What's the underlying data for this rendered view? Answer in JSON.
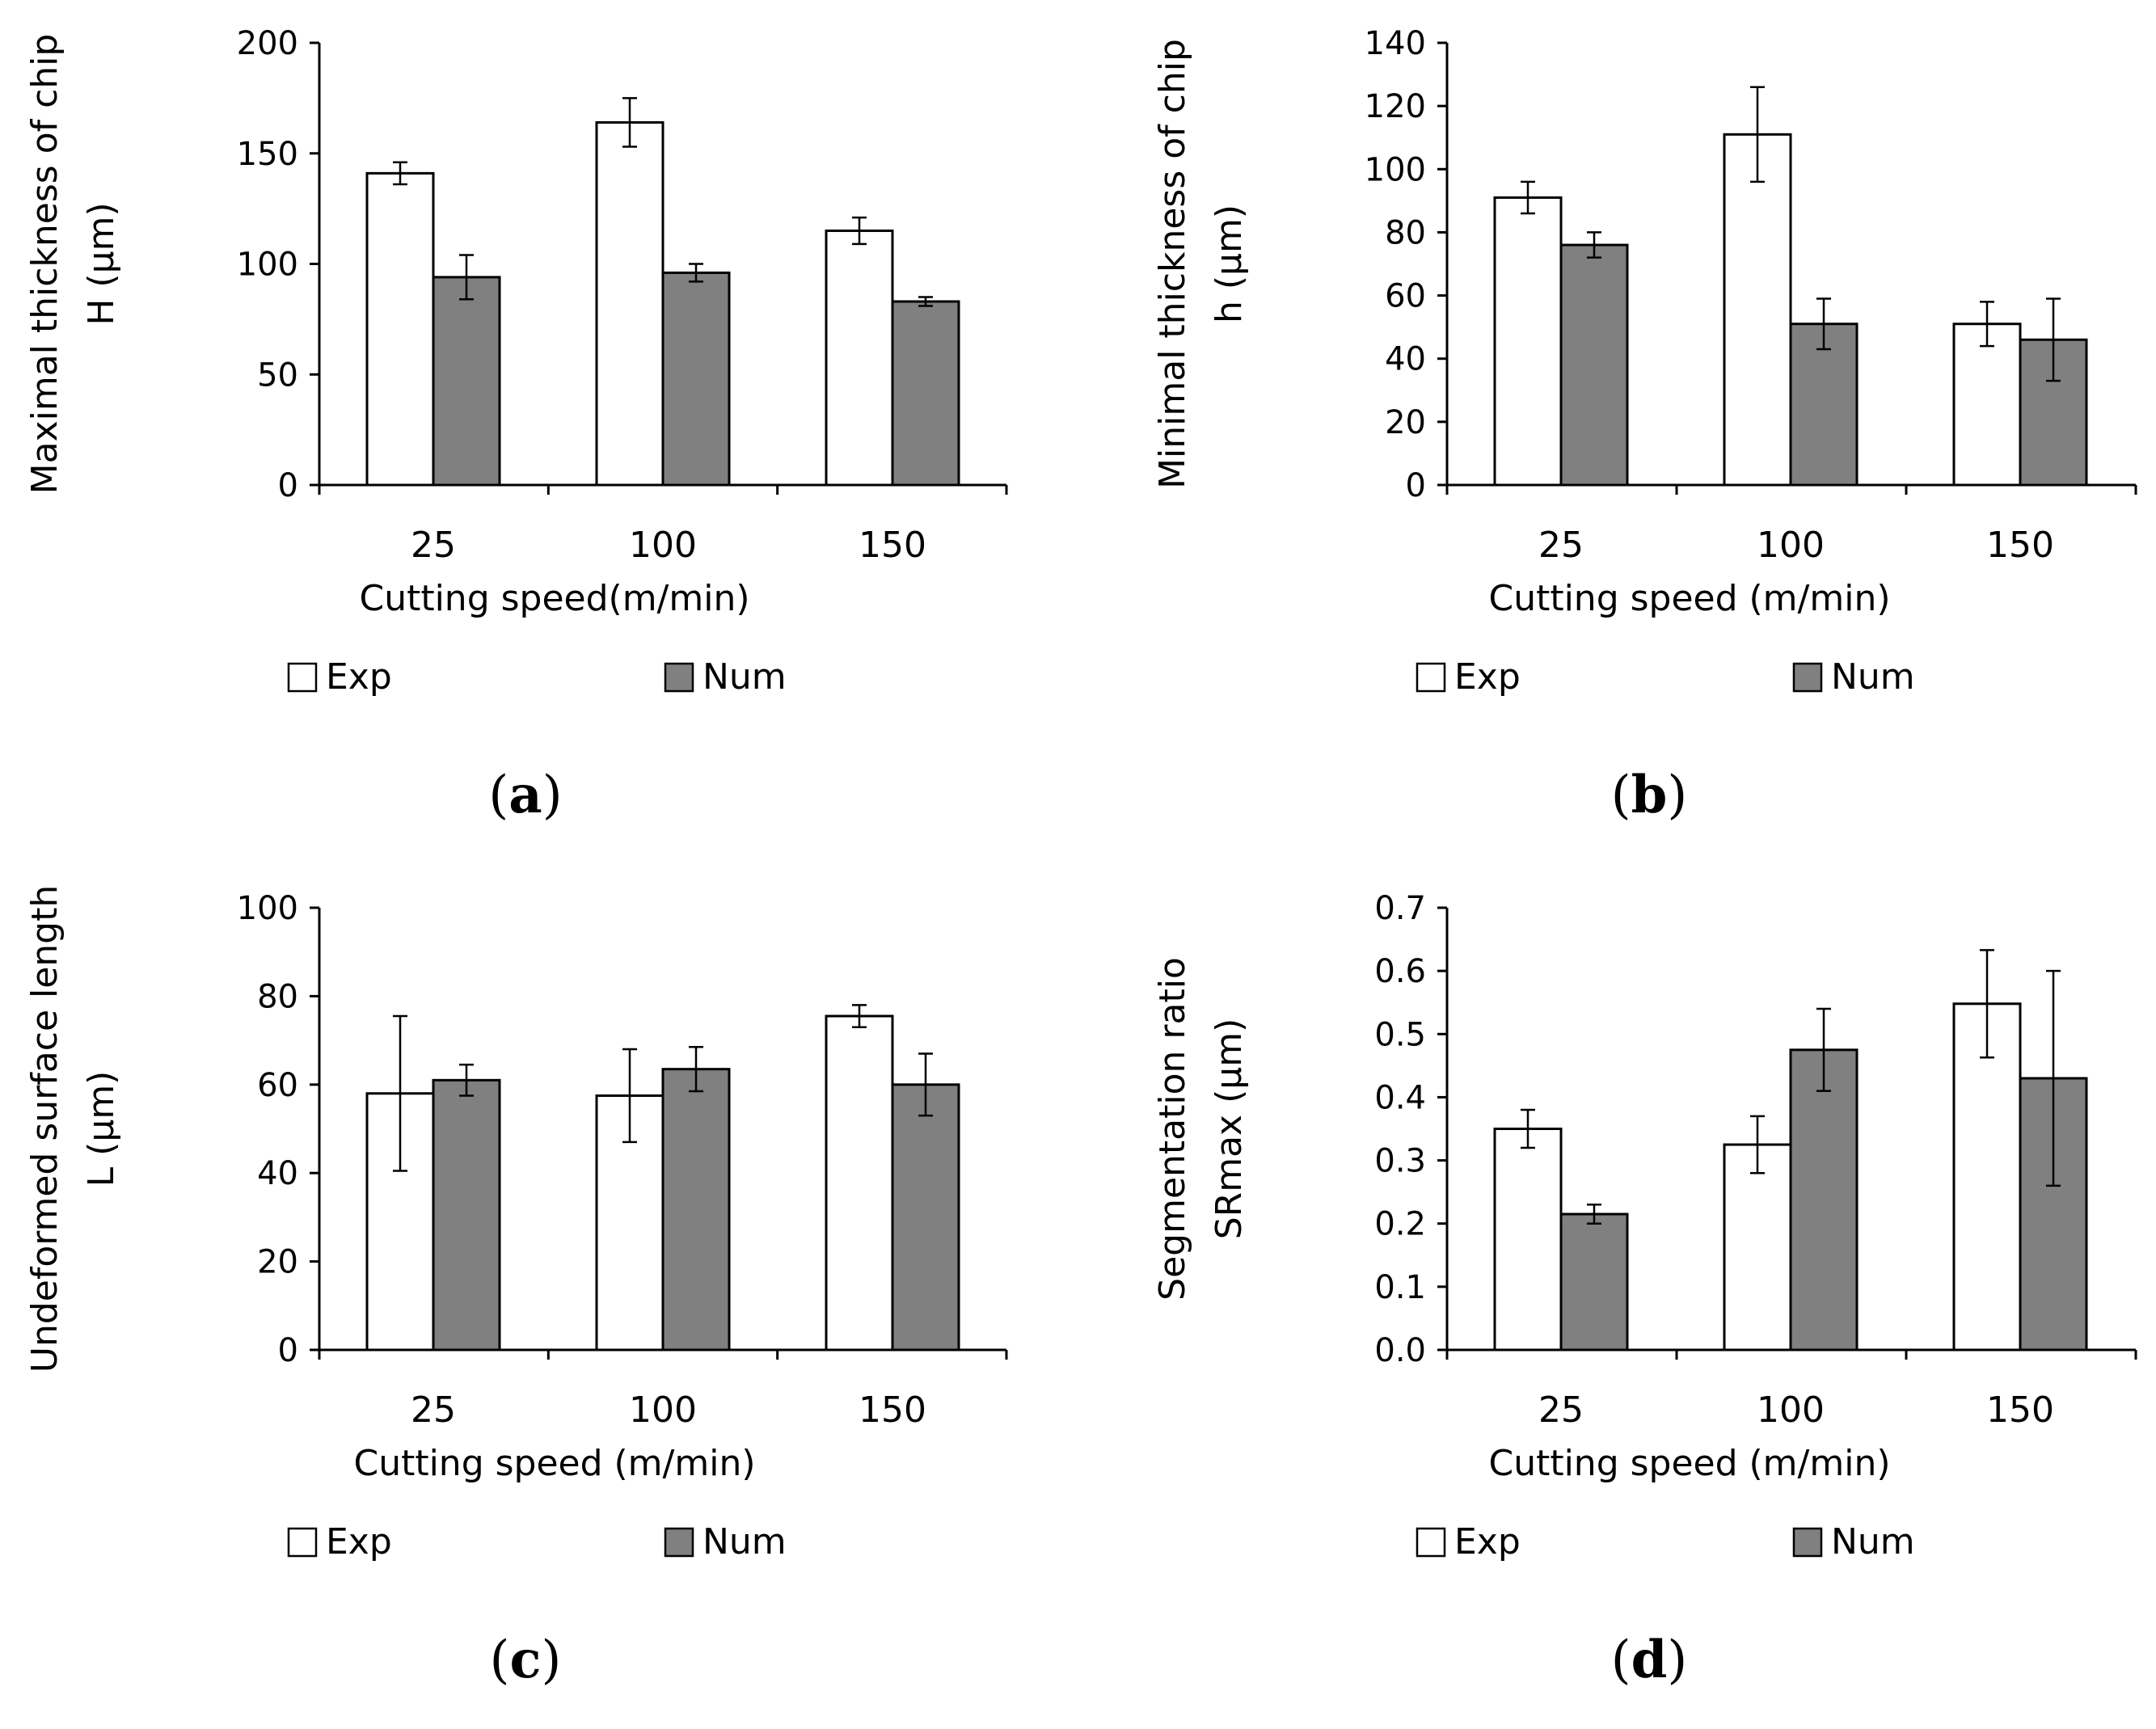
{
  "chart_data": [
    {
      "id": "a",
      "type": "bar",
      "panel_label": "a",
      "categories": [
        "25",
        "100",
        "150"
      ],
      "series": [
        {
          "name": "Exp",
          "color": "#ffffff",
          "values": [
            141,
            164,
            115
          ],
          "errors": [
            5,
            11,
            6
          ]
        },
        {
          "name": "Num",
          "color": "#808080",
          "values": [
            94,
            96,
            83
          ],
          "errors": [
            10,
            4,
            2
          ]
        }
      ],
      "xlabel": "Cutting speed(m/min)",
      "ylabel_lines": [
        "Maximal thickness of chip",
        "H (μm)"
      ],
      "ylim": [
        0,
        200
      ],
      "yticks": [
        "0",
        "50",
        "100",
        "150",
        "200"
      ],
      "legend": [
        "Exp",
        "Num"
      ]
    },
    {
      "id": "b",
      "type": "bar",
      "panel_label": "b",
      "categories": [
        "25",
        "100",
        "150"
      ],
      "series": [
        {
          "name": "Exp",
          "color": "#ffffff",
          "values": [
            91,
            111,
            51
          ],
          "errors": [
            5,
            15,
            7
          ]
        },
        {
          "name": "Num",
          "color": "#808080",
          "values": [
            76,
            51,
            46
          ],
          "errors": [
            4,
            8,
            13
          ]
        }
      ],
      "xlabel": "Cutting speed (m/min)",
      "ylabel_lines": [
        "Minimal thickness of chip",
        "h (μm)"
      ],
      "ylim": [
        0,
        140
      ],
      "yticks": [
        "0",
        "20",
        "40",
        "60",
        "80",
        "100",
        "120",
        "140"
      ],
      "legend": [
        "Exp",
        "Num"
      ]
    },
    {
      "id": "c",
      "type": "bar",
      "panel_label": "c",
      "categories": [
        "25",
        "100",
        "150"
      ],
      "series": [
        {
          "name": "Exp",
          "color": "#ffffff",
          "values": [
            58,
            57.5,
            75.5
          ],
          "errors": [
            17.5,
            10.5,
            2.5
          ]
        },
        {
          "name": "Num",
          "color": "#808080",
          "values": [
            61,
            63.5,
            60
          ],
          "errors": [
            3.5,
            5,
            7
          ]
        }
      ],
      "xlabel": "Cutting speed (m/min)",
      "ylabel_lines": [
        "Undeformed surface length",
        "L (μm)"
      ],
      "ylim": [
        0,
        100
      ],
      "yticks": [
        "0",
        "20",
        "40",
        "60",
        "80",
        "100"
      ],
      "legend": [
        "Exp",
        "Num"
      ]
    },
    {
      "id": "d",
      "type": "bar",
      "panel_label": "d",
      "categories": [
        "25",
        "100",
        "150"
      ],
      "series": [
        {
          "name": "Exp",
          "color": "#ffffff",
          "values": [
            0.35,
            0.325,
            0.548
          ],
          "errors": [
            0.03,
            0.045,
            0.085
          ]
        },
        {
          "name": "Num",
          "color": "#808080",
          "values": [
            0.215,
            0.475,
            0.43
          ],
          "errors": [
            0.015,
            0.065,
            0.17
          ]
        }
      ],
      "xlabel": "Cutting speed (m/min)",
      "ylabel_lines": [
        "Segmentation ratio",
        "SRmax (μm)"
      ],
      "ylim": [
        0,
        0.7
      ],
      "yticks": [
        "0.0",
        "0.1",
        "0.2",
        "0.3",
        "0.4",
        "0.5",
        "0.6",
        "0.7"
      ],
      "legend": [
        "Exp",
        "Num"
      ]
    }
  ]
}
